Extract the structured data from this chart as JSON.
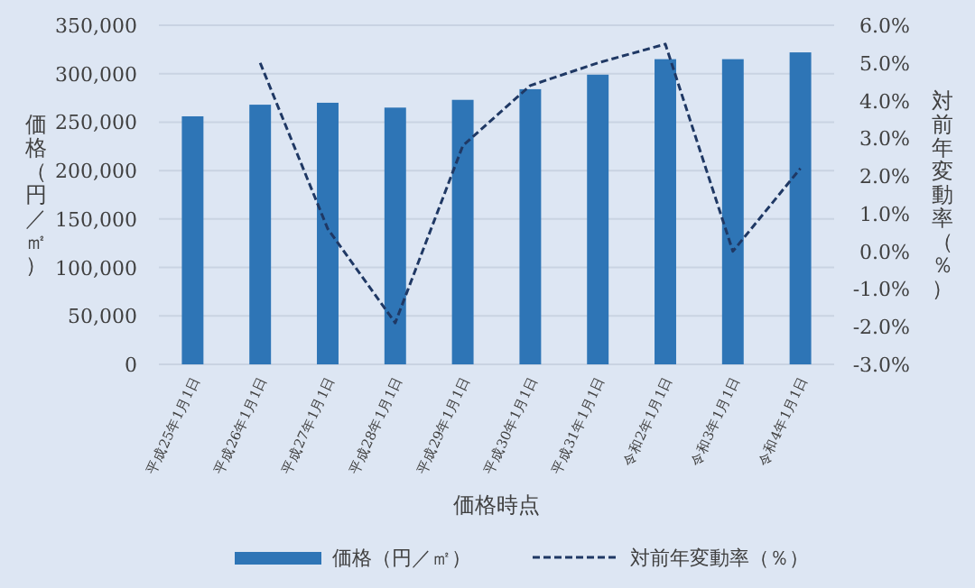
{
  "chart_data": {
    "type": "bar",
    "xlabel": "価格時点",
    "ylabel": "価格（円／㎡）",
    "y2label": "対前年変動率（％）",
    "categories": [
      "平成25年1月1日",
      "平成26年1月1日",
      "平成27年1月1日",
      "平成28年1月1日",
      "平成29年1月1日",
      "平成30年1月1日",
      "平成31年1月1日",
      "令和2年1月1日",
      "令和3年1月1日",
      "令和4年1月1日"
    ],
    "series": [
      {
        "name": "価格（円／㎡）",
        "color": "#2e75b6",
        "values": [
          256000,
          268000,
          270000,
          265000,
          273000,
          284000,
          299000,
          315000,
          315000,
          322000
        ]
      },
      {
        "name": "対前年変動率（％）",
        "type": "line",
        "axis": "y2",
        "color": "#1f3864",
        "line_style": "dashed",
        "marker": "none",
        "values": [
          null,
          5.0,
          0.6,
          -1.9,
          2.8,
          4.4,
          5.0,
          5.5,
          0.0,
          2.2
        ]
      }
    ],
    "ylim": [
      0,
      350000
    ],
    "yticks": [
      {
        "value": 0,
        "label": "0"
      },
      {
        "value": 50000,
        "label": "50,000"
      },
      {
        "value": 100000,
        "label": "100,000"
      },
      {
        "value": 150000,
        "label": "150,000"
      },
      {
        "value": 200000,
        "label": "200,000"
      },
      {
        "value": 250000,
        "label": "250,000"
      },
      {
        "value": 300000,
        "label": "300,000"
      },
      {
        "value": 350000,
        "label": "350,000"
      }
    ],
    "y2lim": [
      -3,
      6
    ],
    "y2ticks": [
      {
        "value": -3,
        "label": "-3.0%"
      },
      {
        "value": -2,
        "label": "-2.0%"
      },
      {
        "value": -1,
        "label": "-1.0%"
      },
      {
        "value": 0,
        "label": "0.0%"
      },
      {
        "value": 1,
        "label": "1.0%"
      },
      {
        "value": 2,
        "label": "2.0%"
      },
      {
        "value": 3,
        "label": "3.0%"
      },
      {
        "value": 4,
        "label": "4.0%"
      },
      {
        "value": 5,
        "label": "5.0%"
      },
      {
        "value": 6,
        "label": "6.0%"
      }
    ],
    "grid": "y",
    "legend": "bottom"
  }
}
